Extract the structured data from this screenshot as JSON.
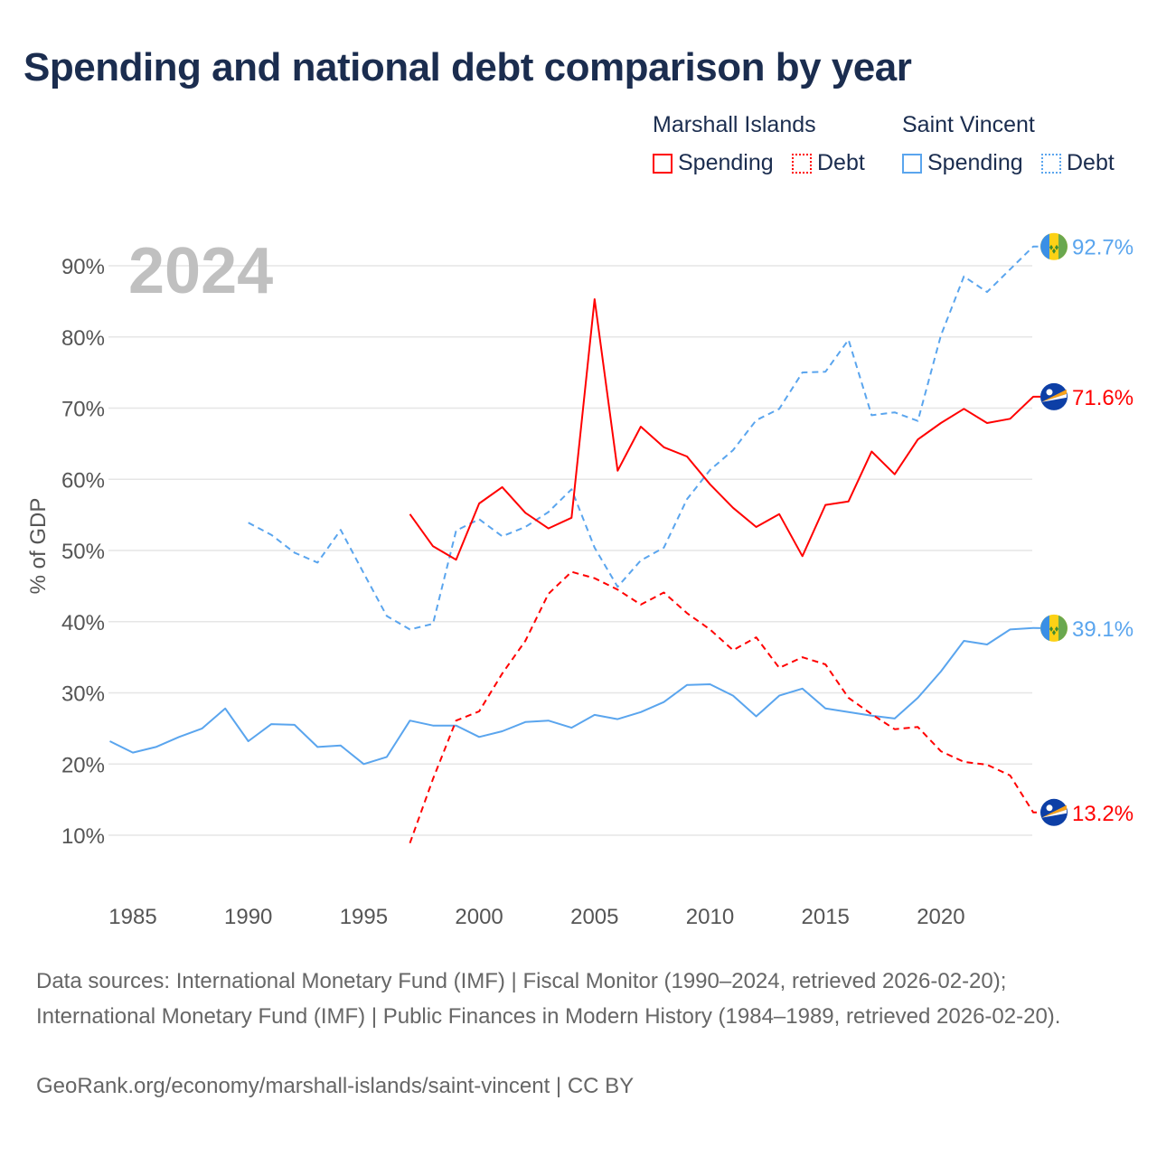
{
  "title": "Spending and national debt comparison by year",
  "legend": {
    "groups": [
      {
        "name": "Marshall Islands",
        "items": [
          {
            "label": "Spending",
            "style": "solid",
            "color": "#ff0000"
          },
          {
            "label": "Debt",
            "style": "dotted",
            "color": "#ff0000"
          }
        ]
      },
      {
        "name": "Saint Vincent",
        "items": [
          {
            "label": "Spending",
            "style": "solid",
            "color": "#5aa5ee"
          },
          {
            "label": "Debt",
            "style": "dotted",
            "color": "#5aa5ee"
          }
        ]
      }
    ]
  },
  "year_label": "2024",
  "footer": {
    "sources": "Data sources: International Monetary Fund (IMF) | Fiscal Monitor (1990–2024, retrieved 2026-02-20); International Monetary Fund (IMF) | Public Finances in Modern History (1984–1989, retrieved 2026-02-20).",
    "credit": "GeoRank.org/economy/marshall-islands/saint-vincent | CC BY"
  },
  "chart_data": {
    "type": "line",
    "title": "Spending and national debt comparison by year",
    "xlabel": "",
    "ylabel": "% of GDP",
    "xlim": [
      1984,
      2024
    ],
    "ylim": [
      0,
      95
    ],
    "xticks": [
      1985,
      1990,
      1995,
      2000,
      2005,
      2010,
      2015,
      2020
    ],
    "yticks": [
      10,
      20,
      30,
      40,
      50,
      60,
      70,
      80,
      90
    ],
    "ytick_labels": [
      "10%",
      "20%",
      "30%",
      "40%",
      "50%",
      "60%",
      "70%",
      "80%",
      "90%"
    ],
    "grid": true,
    "series": [
      {
        "name": "Saint Vincent Spending",
        "color": "#5aa5ee",
        "dash": false,
        "end_label": "39.1%",
        "flag": "saint-vincent",
        "x": [
          1984,
          1985,
          1986,
          1987,
          1988,
          1989,
          1990,
          1991,
          1992,
          1993,
          1994,
          1995,
          1996,
          1997,
          1998,
          1999,
          2000,
          2001,
          2002,
          2003,
          2004,
          2005,
          2006,
          2007,
          2008,
          2009,
          2010,
          2011,
          2012,
          2013,
          2014,
          2015,
          2016,
          2017,
          2018,
          2019,
          2020,
          2021,
          2022,
          2023,
          2024
        ],
        "y": [
          23.2,
          21.6,
          22.4,
          23.8,
          25.0,
          27.8,
          23.2,
          25.6,
          25.5,
          22.4,
          22.6,
          20.0,
          21.0,
          26.1,
          25.4,
          25.4,
          23.8,
          24.6,
          25.9,
          26.1,
          25.1,
          26.9,
          26.3,
          27.3,
          28.7,
          31.1,
          31.2,
          29.6,
          26.7,
          29.6,
          30.6,
          27.8,
          27.3,
          26.8,
          26.4,
          29.3,
          33.0,
          37.3,
          36.8,
          38.9,
          39.1
        ]
      },
      {
        "name": "Saint Vincent Debt",
        "color": "#5aa5ee",
        "dash": true,
        "end_label": "92.7%",
        "flag": "saint-vincent",
        "x": [
          1990,
          1991,
          1992,
          1993,
          1994,
          1995,
          1996,
          1997,
          1998,
          1999,
          2000,
          2001,
          2002,
          2003,
          2004,
          2005,
          2006,
          2007,
          2008,
          2009,
          2010,
          2011,
          2012,
          2013,
          2014,
          2015,
          2016,
          2017,
          2018,
          2019,
          2020,
          2021,
          2022,
          2023,
          2024
        ],
        "y": [
          53.9,
          52.2,
          49.7,
          48.3,
          52.9,
          46.8,
          40.8,
          38.9,
          39.7,
          52.8,
          54.4,
          52.0,
          53.3,
          55.4,
          58.6,
          50.4,
          44.9,
          48.6,
          50.4,
          57.2,
          61.3,
          64.1,
          68.3,
          69.9,
          75.0,
          75.1,
          79.6,
          69.0,
          69.4,
          68.2,
          80.2,
          88.5,
          86.3,
          89.5,
          92.7
        ]
      },
      {
        "name": "Marshall Islands Spending",
        "color": "#ff0000",
        "dash": false,
        "end_label": "71.6%",
        "flag": "marshall-islands",
        "x": [
          1997,
          1998,
          1999,
          2000,
          2001,
          2002,
          2003,
          2004,
          2005,
          2006,
          2007,
          2008,
          2009,
          2010,
          2011,
          2012,
          2013,
          2014,
          2015,
          2016,
          2017,
          2018,
          2019,
          2020,
          2021,
          2022,
          2023,
          2024
        ],
        "y": [
          55.1,
          50.6,
          48.7,
          56.6,
          58.9,
          55.3,
          53.1,
          54.6,
          85.3,
          61.2,
          67.4,
          64.5,
          63.2,
          59.3,
          56.0,
          53.3,
          55.1,
          49.2,
          56.4,
          56.9,
          63.9,
          60.7,
          65.6,
          67.9,
          69.9,
          67.9,
          68.5,
          71.6
        ]
      },
      {
        "name": "Marshall Islands Debt",
        "color": "#ff0000",
        "dash": true,
        "end_label": "13.2%",
        "flag": "marshall-islands",
        "x": [
          1997,
          1998,
          1999,
          2000,
          2001,
          2002,
          2003,
          2004,
          2005,
          2006,
          2007,
          2008,
          2009,
          2010,
          2011,
          2012,
          2013,
          2014,
          2015,
          2016,
          2017,
          2018,
          2019,
          2020,
          2021,
          2022,
          2023,
          2024
        ],
        "y": [
          8.9,
          17.9,
          26.1,
          27.4,
          32.7,
          37.3,
          43.9,
          47.0,
          46.1,
          44.5,
          42.4,
          44.1,
          41.2,
          38.9,
          36.0,
          37.8,
          33.5,
          35.0,
          34.0,
          29.3,
          27.0,
          24.9,
          25.2,
          21.8,
          20.3,
          19.9,
          18.4,
          13.2
        ]
      }
    ]
  }
}
